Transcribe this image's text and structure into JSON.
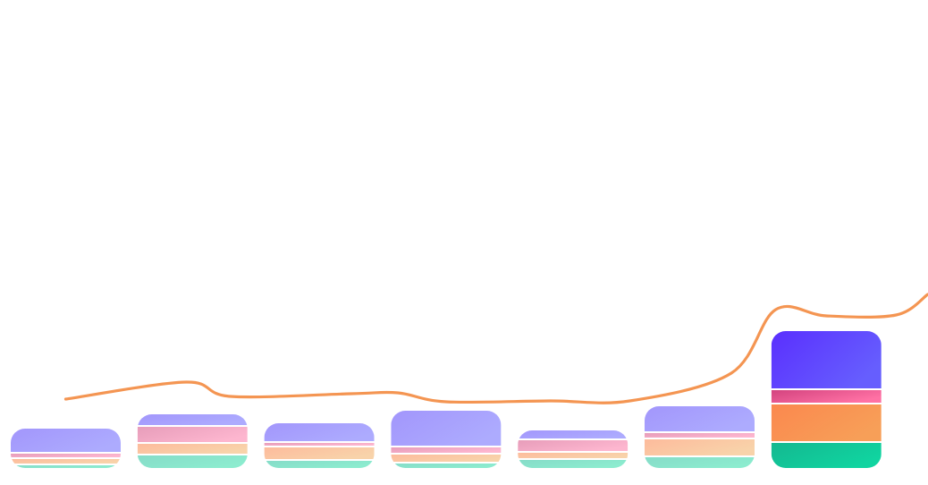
{
  "chart_data": {
    "type": "bar",
    "stacked": true,
    "title": "",
    "xlabel": "",
    "ylabel": "",
    "ylim": [
      0,
      400
    ],
    "grid": false,
    "legend": "none",
    "highlight_index": 6,
    "categories": [
      "",
      "",
      "",
      "",
      "",
      "",
      ""
    ],
    "series": [
      {
        "key": "s1",
        "values": [
          5,
          16,
          10,
          7,
          11,
          14,
          30
        ],
        "colors": [
          "#86dcc8",
          "#8ceccf"
        ],
        "highlight_colors": [
          "#14b890",
          "#10d4a0"
        ]
      },
      {
        "key": "s2",
        "values": [
          7,
          13,
          15,
          10,
          8,
          20,
          43
        ],
        "colors": [
          "#fdbb9c",
          "#f8d3aa"
        ],
        "highlight_colors": [
          "#fb884e",
          "#f79f58"
        ]
      },
      {
        "key": "s3",
        "values": [
          6,
          19,
          5,
          8,
          14,
          7,
          16
        ],
        "colors": [
          "#e79dba",
          "#fdb6cf"
        ],
        "highlight_colors": [
          "#d3437f",
          "#ff71a4"
        ]
      },
      {
        "key": "s4",
        "values": [
          26,
          12,
          20,
          39,
          9,
          28,
          64
        ],
        "colors": [
          "#a296fc",
          "#adabfe"
        ],
        "highlight_colors": [
          "#5a2ffe",
          "#665efe"
        ]
      }
    ],
    "line": {
      "color": "#f49552",
      "points": [
        [
          0,
          77
        ],
        [
          0.95,
          96
        ],
        [
          1.3,
          80
        ],
        [
          2.25,
          83
        ],
        [
          2.62,
          84
        ],
        [
          3,
          74
        ],
        [
          3.82,
          75
        ],
        [
          4.45,
          75
        ],
        [
          5.25,
          106
        ],
        [
          5.6,
          177
        ],
        [
          6,
          170
        ],
        [
          6.55,
          171
        ],
        [
          6.8,
          194
        ]
      ]
    }
  }
}
